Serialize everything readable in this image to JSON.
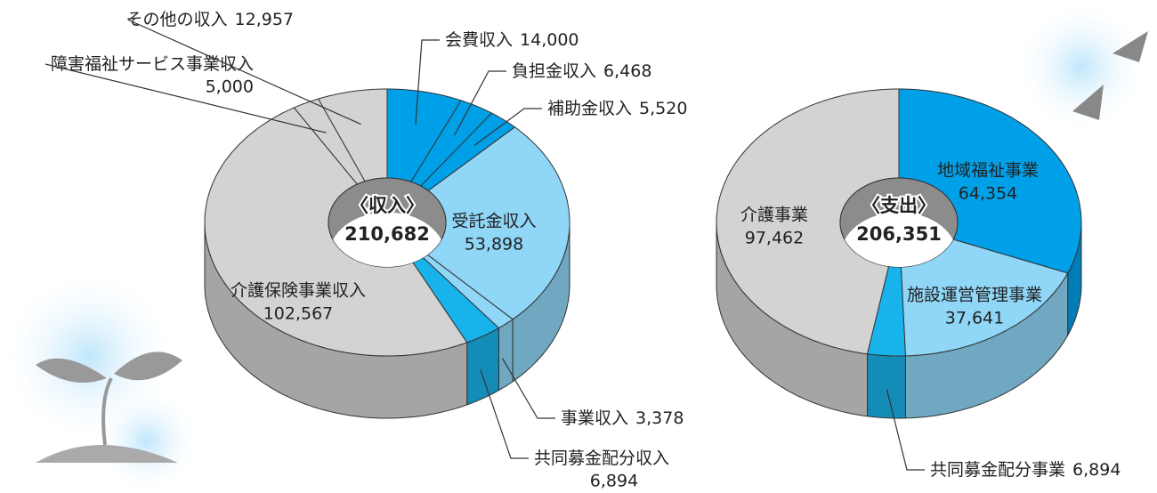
{
  "chart_data": [
    {
      "type": "donut",
      "title": "〈収入〉",
      "total": {
        "value": 210682,
        "label": "210,682"
      },
      "categories": [
        "会費収入",
        "負担金収入",
        "補助金収入",
        "受託金収入",
        "事業収入",
        "共同募金配分収入",
        "介護保険事業収入",
        "障害福祉サービス事業収入",
        "その他の収入"
      ],
      "values": [
        14000,
        6468,
        5520,
        53898,
        3378,
        6894,
        102567,
        5000,
        12957
      ],
      "value_labels": [
        "14,000",
        "6,468",
        "5,520",
        "53,898",
        "3,378",
        "6,894",
        "102,567",
        "5,000",
        "12,957"
      ],
      "colors": [
        "#00a0e9",
        "#00a0e9",
        "#00a0e9",
        "#8fd6f7",
        "#8fd6f7",
        "#19b3ec",
        "#d3d3d3",
        "#d3d3d3",
        "#d3d3d3"
      ]
    },
    {
      "type": "donut",
      "title": "〈支出〉",
      "total": {
        "value": 206351,
        "label": "206,351"
      },
      "categories": [
        "地域福祉事業",
        "施設運営管理事業",
        "共同募金配分事業",
        "介護事業"
      ],
      "values": [
        64354,
        37641,
        6894,
        97462
      ],
      "value_labels": [
        "64,354",
        "37,641",
        "6,894",
        "97,462"
      ],
      "colors": [
        "#00a0e9",
        "#8fd6f7",
        "#19b3ec",
        "#d3d3d3"
      ]
    }
  ]
}
